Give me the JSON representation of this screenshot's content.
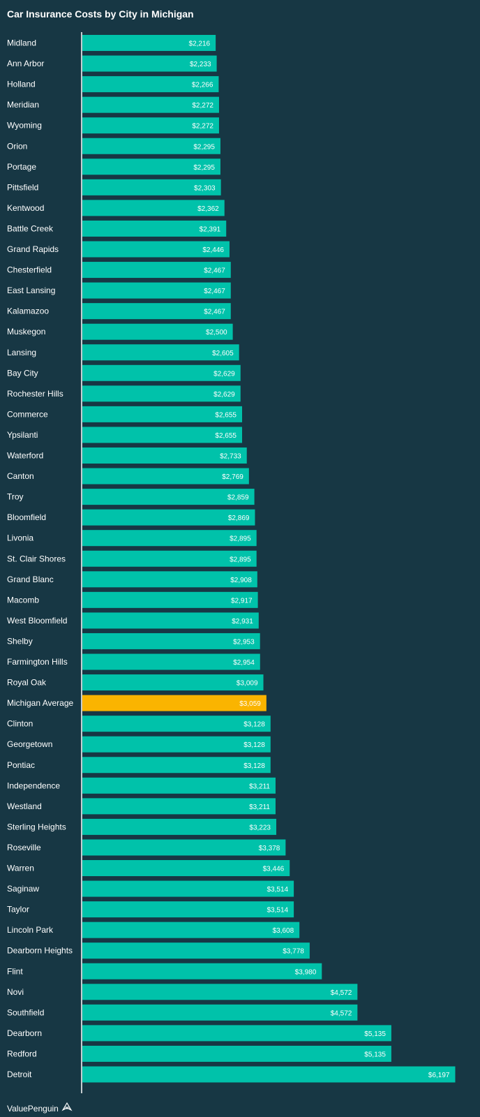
{
  "title": "Car Insurance Costs by City in Michigan",
  "brand": "ValuePenguin",
  "colors": {
    "background": "#173744",
    "bar": "#00c2aa",
    "highlight": "#fab400",
    "text": "#ffffff",
    "axis": "#ffffff"
  },
  "chart_data": {
    "type": "bar",
    "orientation": "horizontal",
    "title": "Car Insurance Costs by City in Michigan",
    "xlabel": "",
    "ylabel": "",
    "xlim": [
      0,
      6197
    ],
    "grid": false,
    "highlight_category": "Michigan Average",
    "categories": [
      "Midland",
      "Ann Arbor",
      "Holland",
      "Meridian",
      "Wyoming",
      "Orion",
      "Portage",
      "Pittsfield",
      "Kentwood",
      "Battle Creek",
      "Grand Rapids",
      "Chesterfield",
      "East Lansing",
      "Kalamazoo",
      "Muskegon",
      "Lansing",
      "Bay City",
      "Rochester Hills",
      "Commerce",
      "Ypsilanti",
      "Waterford",
      "Canton",
      "Troy",
      "Bloomfield",
      "Livonia",
      "St. Clair Shores",
      "Grand Blanc",
      "Macomb",
      "West Bloomfield",
      "Shelby",
      "Farmington Hills",
      "Royal Oak",
      "Michigan Average",
      "Clinton",
      "Georgetown",
      "Pontiac",
      "Independence",
      "Westland",
      "Sterling Heights",
      "Roseville",
      "Warren",
      "Saginaw",
      "Taylor",
      "Lincoln Park",
      "Dearborn Heights",
      "Flint",
      "Novi",
      "Southfield",
      "Dearborn",
      "Redford",
      "Detroit"
    ],
    "values": [
      2216,
      2233,
      2266,
      2272,
      2272,
      2295,
      2295,
      2303,
      2362,
      2391,
      2446,
      2467,
      2467,
      2467,
      2500,
      2605,
      2629,
      2629,
      2655,
      2655,
      2733,
      2769,
      2859,
      2869,
      2895,
      2895,
      2908,
      2917,
      2931,
      2953,
      2954,
      3009,
      3059,
      3128,
      3128,
      3128,
      3211,
      3211,
      3223,
      3378,
      3446,
      3514,
      3514,
      3608,
      3778,
      3980,
      4572,
      4572,
      5135,
      5135,
      6197
    ],
    "value_labels": [
      "$2,216",
      "$2,233",
      "$2,266",
      "$2,272",
      "$2,272",
      "$2,295",
      "$2,295",
      "$2,303",
      "$2,362",
      "$2,391",
      "$2,446",
      "$2,467",
      "$2,467",
      "$2,467",
      "$2,500",
      "$2,605",
      "$2,629",
      "$2,629",
      "$2,655",
      "$2,655",
      "$2,733",
      "$2,769",
      "$2,859",
      "$2,869",
      "$2,895",
      "$2,895",
      "$2,908",
      "$2,917",
      "$2,931",
      "$2,953",
      "$2,954",
      "$3,009",
      "$3,059",
      "$3,128",
      "$3,128",
      "$3,128",
      "$3,211",
      "$3,211",
      "$3,223",
      "$3,378",
      "$3,446",
      "$3,514",
      "$3,514",
      "$3,608",
      "$3,778",
      "$3,980",
      "$4,572",
      "$4,572",
      "$5,135",
      "$5,135",
      "$6,197"
    ]
  }
}
